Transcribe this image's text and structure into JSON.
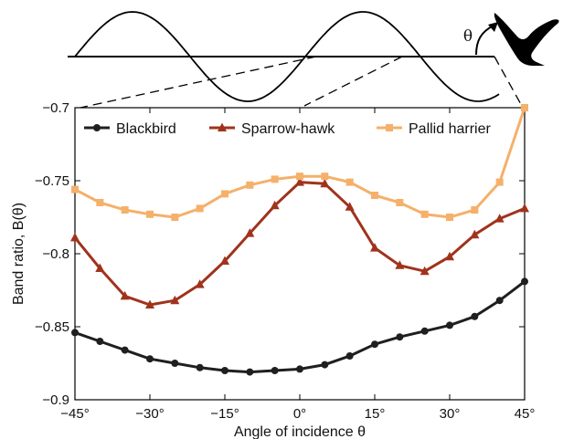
{
  "chart_data": {
    "type": "line",
    "xlabel": "Angle of incidence θ",
    "ylabel": "Band ratio, B(θ)",
    "xlim": [
      -45,
      45
    ],
    "ylim": [
      -0.9,
      -0.7
    ],
    "xticks": [
      -45,
      -30,
      -15,
      0,
      15,
      30,
      45
    ],
    "xtick_labels": [
      "−45°",
      "−30°",
      "−15°",
      "0°",
      "15°",
      "30°",
      "45°"
    ],
    "yticks": [
      -0.9,
      -0.85,
      -0.8,
      -0.75,
      -0.7
    ],
    "ytick_labels": [
      "−0.9",
      "−0.85",
      "−0.8",
      "−0.75",
      "−0.7"
    ],
    "grid": false,
    "legend_position": "top",
    "x": [
      -45,
      -40,
      -35,
      -30,
      -25,
      -20,
      -15,
      -10,
      -5,
      0,
      5,
      10,
      15,
      20,
      25,
      30,
      35,
      40,
      45
    ],
    "series": [
      {
        "name": "Blackbird",
        "color": "#1f1f1f",
        "marker": "circle",
        "values": [
          -0.854,
          -0.86,
          -0.866,
          -0.872,
          -0.875,
          -0.878,
          -0.88,
          -0.881,
          -0.88,
          -0.879,
          -0.876,
          -0.87,
          -0.862,
          -0.857,
          -0.853,
          -0.849,
          -0.843,
          -0.832,
          -0.819
        ]
      },
      {
        "name": "Sparrow-hawk",
        "color": "#a0331c",
        "marker": "triangle",
        "values": [
          -0.789,
          -0.81,
          -0.829,
          -0.835,
          -0.832,
          -0.821,
          -0.805,
          -0.786,
          -0.767,
          -0.751,
          -0.752,
          -0.768,
          -0.796,
          -0.808,
          -0.812,
          -0.802,
          -0.787,
          -0.776,
          -0.769
        ]
      },
      {
        "name": "Pallid harrier",
        "color": "#f5b06a",
        "marker": "square",
        "values": [
          -0.756,
          -0.765,
          -0.77,
          -0.773,
          -0.775,
          -0.769,
          -0.759,
          -0.753,
          -0.749,
          -0.747,
          -0.747,
          -0.751,
          -0.76,
          -0.765,
          -0.773,
          -0.775,
          -0.77,
          -0.751,
          -0.7
        ]
      }
    ]
  },
  "diagram": {
    "theta_label": "θ",
    "icons": [
      "bird-silhouette-icon",
      "curved-arrow-icon"
    ]
  }
}
